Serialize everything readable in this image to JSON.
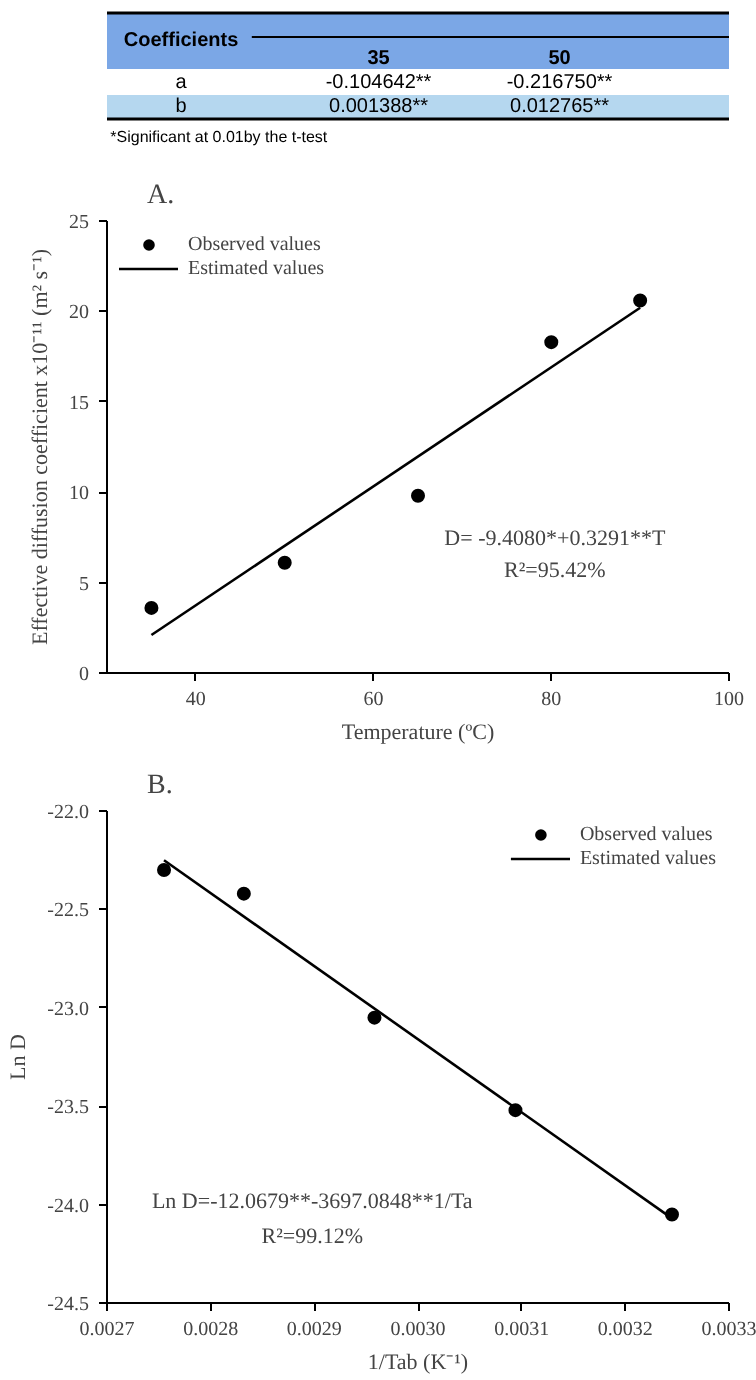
{
  "chart_data": [
    {
      "type": "other",
      "xlabel": "Coefficients",
      "categories": [
        "35",
        "50"
      ],
      "y_categories": [
        "a",
        "b"
      ],
      "cell_labels": [
        [
          "-0.104642**",
          "-0.216750**"
        ],
        [
          "0.001388**",
          "0.012765**"
        ]
      ],
      "annotations": [
        "*Significant at 0.01by the t-test"
      ]
    },
    {
      "type": "scatter",
      "title": "A.",
      "xlabel": "Temperature (ºC)",
      "ylabel": "Effective diffusion coefficient x10⁻¹¹ (m² s⁻¹)",
      "legend": "top left",
      "x": [
        35,
        50,
        65,
        80,
        90
      ],
      "series": [
        {
          "name": "Observed values",
          "color": "#000000",
          "values": [
            3.6,
            6.1,
            9.8,
            18.3,
            20.6
          ],
          "marker": "circle"
        },
        {
          "name": "Estimated values",
          "type": "line",
          "color": "#000000",
          "x": [
            35,
            90
          ],
          "values": [
            2.1,
            20.2
          ],
          "marker": "none"
        }
      ],
      "xlim": [
        30,
        100
      ],
      "xticks": [
        40,
        60,
        80,
        100
      ],
      "ylim": [
        0,
        25
      ],
      "yticks": [
        0,
        5,
        10,
        15,
        20,
        25
      ],
      "annotations": [
        "D= -9.4080*+0.3291**T",
        "R²=95.42%"
      ]
    },
    {
      "type": "scatter",
      "title": "B.",
      "xlabel": "1/Tab (K⁻¹)",
      "ylabel": "Ln D",
      "legend": "top right",
      "x": [
        0.002755,
        0.002832,
        0.002958,
        0.003094,
        0.003245
      ],
      "series": [
        {
          "name": "Observed values",
          "color": "#000000",
          "values": [
            -22.3,
            -22.42,
            -23.05,
            -23.52,
            -24.05
          ],
          "marker": "circle"
        },
        {
          "name": "Estimated values",
          "type": "line",
          "color": "#000000",
          "x": [
            0.002755,
            0.003245
          ],
          "values": [
            -22.25,
            -24.07
          ],
          "marker": "none"
        }
      ],
      "xlim": [
        0.0027,
        0.0033
      ],
      "xticks": [
        0.0027,
        0.0028,
        0.0029,
        {
          "value": 0.003,
          "label": "0.0030"
        },
        0.0031,
        0.0032,
        0.0033
      ],
      "ylim": [
        -24.5,
        -22.0
      ],
      "yticks": [
        {
          "value": -24.5,
          "label": "-24.5"
        },
        {
          "value": -24,
          "label": "-24.0"
        },
        {
          "value": -23.5,
          "label": "-23.5"
        },
        {
          "value": -23,
          "label": "-23.0"
        },
        {
          "value": -22.5,
          "label": "-22.5"
        },
        {
          "value": -22,
          "label": "-22.0"
        }
      ],
      "annotations": [
        "Ln D=-12.0679**-3697.0848**1/Ta",
        "R²=99.12%"
      ]
    }
  ]
}
